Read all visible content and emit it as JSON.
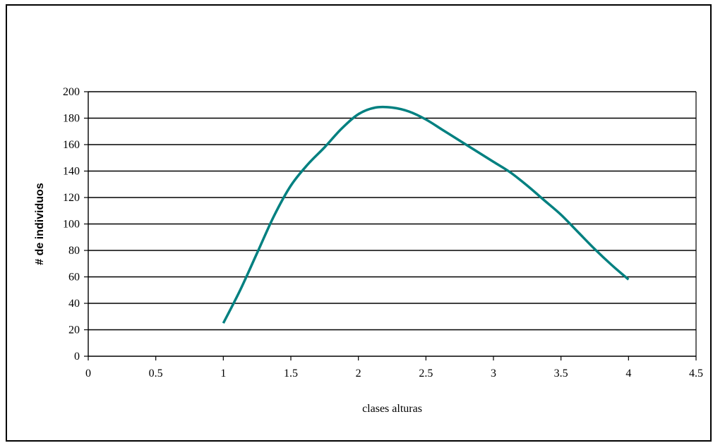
{
  "chart_data": {
    "type": "scatter",
    "title": "",
    "xlabel": "clases alturas",
    "ylabel": "# de individuos",
    "xlim": [
      0,
      4.5
    ],
    "ylim": [
      0,
      200
    ],
    "x_ticks": [
      0,
      0.5,
      1,
      1.5,
      2,
      2.5,
      3,
      3.5,
      4,
      4.5
    ],
    "y_ticks": [
      0,
      20,
      40,
      60,
      80,
      100,
      120,
      140,
      160,
      180,
      200
    ],
    "grid": "horizontal",
    "legend": "none",
    "series": [
      {
        "color": "#008080",
        "smooth": true,
        "markers": false,
        "x": [
          1.0,
          1.125,
          1.25,
          1.375,
          1.5,
          1.625,
          1.75,
          1.875,
          2.0,
          2.125,
          2.25,
          2.375,
          2.5,
          2.625,
          2.75,
          2.875,
          3.0,
          3.125,
          3.25,
          3.375,
          3.5,
          3.625,
          3.75,
          3.875,
          4.0
        ],
        "y": [
          25,
          50,
          78,
          106,
          129,
          145,
          158,
          172,
          183,
          188,
          188,
          185,
          179,
          171,
          163,
          155,
          147,
          139,
          129,
          118,
          107,
          94,
          81,
          69,
          58
        ]
      }
    ]
  }
}
